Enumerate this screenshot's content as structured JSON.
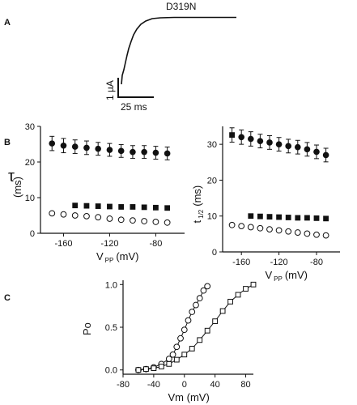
{
  "panels": {
    "a": "A",
    "b": "B",
    "c": "C"
  },
  "trace": {
    "title": "D319N",
    "scale_current": "1 µA",
    "scale_time": "25 ms"
  },
  "chart_data": [
    {
      "type": "scatter",
      "xlabel": "V",
      "xlabel_sub": "PP",
      "xlabel_unit": "(mV)",
      "ylabel": "τ",
      "ylabel_unit": "(ms)",
      "xlim": [
        -180,
        -55
      ],
      "ylim": [
        0,
        30
      ],
      "x_ticks": [
        -160,
        -120,
        -80
      ],
      "y_ticks": [
        0,
        10,
        20,
        30
      ],
      "series": [
        {
          "marker": "filled-circle",
          "error_bars": true,
          "x": [
            -170,
            -160,
            -150,
            -140,
            -130,
            -120,
            -110,
            -100,
            -90,
            -80,
            -70
          ],
          "y": [
            25.2,
            24.6,
            24.3,
            24.0,
            23.7,
            23.4,
            23.1,
            22.8,
            22.8,
            22.6,
            22.4
          ],
          "err": [
            2.0,
            2.0,
            1.9,
            1.9,
            1.8,
            1.8,
            1.8,
            1.8,
            1.8,
            1.8,
            1.8
          ]
        },
        {
          "marker": "filled-square",
          "error_bars": false,
          "x": [
            -150,
            -140,
            -130,
            -120,
            -110,
            -100,
            -90,
            -80,
            -70
          ],
          "y": [
            7.8,
            7.7,
            7.6,
            7.5,
            7.4,
            7.4,
            7.3,
            7.2,
            7.1
          ]
        },
        {
          "marker": "open-circle",
          "error_bars": false,
          "x": [
            -170,
            -160,
            -150,
            -140,
            -130,
            -120,
            -110,
            -100,
            -90,
            -80,
            -70
          ],
          "y": [
            5.6,
            5.3,
            5.0,
            4.8,
            4.5,
            4.1,
            3.8,
            3.6,
            3.4,
            3.2,
            3.0
          ]
        }
      ]
    },
    {
      "type": "scatter",
      "xlabel": "V",
      "xlabel_sub": "PP",
      "xlabel_unit": "(mV)",
      "ylabel": "t",
      "ylabel_sub": "1/2",
      "ylabel_unit": "(ms)",
      "xlim": [
        -180,
        -55
      ],
      "ylim": [
        0,
        35
      ],
      "x_ticks": [
        -160,
        -120,
        -80
      ],
      "y_ticks": [
        0,
        10,
        20,
        30
      ],
      "series": [
        {
          "marker": "filled-square",
          "error_bars": true,
          "x": [
            -170
          ],
          "y": [
            32.6
          ],
          "err": [
            2.0
          ]
        },
        {
          "marker": "filled-circle",
          "error_bars": true,
          "x": [
            -160,
            -150,
            -140,
            -130,
            -120,
            -110,
            -100,
            -90,
            -80,
            -70
          ],
          "y": [
            32.0,
            31.5,
            30.9,
            30.5,
            30.0,
            29.5,
            29.2,
            28.6,
            27.9,
            27.0
          ],
          "err": [
            2.0,
            2.0,
            1.9,
            1.9,
            1.9,
            1.9,
            1.9,
            1.9,
            1.9,
            1.9
          ]
        },
        {
          "marker": "filled-square",
          "error_bars": false,
          "x": [
            -150,
            -140,
            -130,
            -120,
            -110,
            -100,
            -90,
            -80,
            -70
          ],
          "y": [
            10.0,
            9.9,
            9.8,
            9.7,
            9.6,
            9.5,
            9.5,
            9.4,
            9.3
          ]
        },
        {
          "marker": "open-circle",
          "error_bars": false,
          "x": [
            -170,
            -160,
            -150,
            -140,
            -130,
            -120,
            -110,
            -100,
            -90,
            -80,
            -70
          ],
          "y": [
            7.5,
            7.2,
            6.9,
            6.6,
            6.3,
            6.0,
            5.7,
            5.4,
            5.1,
            4.8,
            4.6
          ]
        }
      ]
    },
    {
      "type": "scatter",
      "xlabel": "Vm (mV)",
      "ylabel": "Po",
      "xlim": [
        -80,
        90
      ],
      "ylim": [
        -0.05,
        1.05
      ],
      "x_ticks": [
        -80,
        -40,
        0,
        40,
        80
      ],
      "y_ticks": [
        0.0,
        0.5,
        1.0
      ],
      "series": [
        {
          "marker": "open-circle",
          "fit_line": true,
          "x": [
            -60,
            -50,
            -40,
            -30,
            -20,
            -15,
            -10,
            -5,
            0,
            5,
            10,
            15,
            20,
            25,
            30
          ],
          "y": [
            0.0,
            0.01,
            0.03,
            0.07,
            0.13,
            0.18,
            0.27,
            0.37,
            0.47,
            0.58,
            0.68,
            0.76,
            0.84,
            0.93,
            0.98
          ]
        },
        {
          "marker": "open-square",
          "fit_line": true,
          "x": [
            -60,
            -50,
            -40,
            -30,
            -20,
            -10,
            0,
            10,
            20,
            30,
            40,
            50,
            60,
            70,
            80,
            90
          ],
          "y": [
            0.0,
            0.01,
            0.02,
            0.04,
            0.07,
            0.12,
            0.18,
            0.25,
            0.35,
            0.46,
            0.57,
            0.69,
            0.8,
            0.88,
            0.95,
            1.0
          ]
        }
      ]
    }
  ]
}
